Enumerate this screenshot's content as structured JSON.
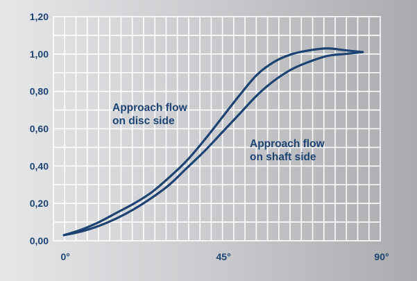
{
  "chart_data": {
    "type": "line",
    "title": "",
    "xlabel": "",
    "ylabel": "",
    "xlim": [
      0,
      90
    ],
    "ylim": [
      0,
      1.2
    ],
    "grid": true,
    "colors": {
      "line": "#1d4373",
      "text": "#1d4373",
      "grid": "#ffffff"
    },
    "yticks": [
      {
        "value": 0.0,
        "label": "0,00"
      },
      {
        "value": 0.2,
        "label": "0,20"
      },
      {
        "value": 0.4,
        "label": "0,40"
      },
      {
        "value": 0.6,
        "label": "0,60"
      },
      {
        "value": 0.8,
        "label": "0,80"
      },
      {
        "value": 1.0,
        "label": "1,00"
      },
      {
        "value": 1.2,
        "label": "1,20"
      }
    ],
    "xticks": [
      {
        "value": 0,
        "label": "0°"
      },
      {
        "value": 45,
        "label": "45°"
      },
      {
        "value": 90,
        "label": "90°"
      }
    ],
    "series": [
      {
        "name": "Approach flow on disc side",
        "x": [
          0,
          5,
          10,
          15,
          20,
          25,
          30,
          35,
          40,
          45,
          50,
          55,
          60,
          65,
          70,
          75,
          80,
          85
        ],
        "y": [
          0.03,
          0.06,
          0.1,
          0.15,
          0.2,
          0.26,
          0.34,
          0.43,
          0.54,
          0.66,
          0.78,
          0.89,
          0.96,
          1.0,
          1.02,
          1.03,
          1.02,
          1.01
        ]
      },
      {
        "name": "Approach flow on shaft side",
        "x": [
          0,
          5,
          10,
          15,
          20,
          25,
          30,
          35,
          40,
          45,
          50,
          55,
          60,
          65,
          70,
          75,
          80,
          85
        ],
        "y": [
          0.03,
          0.05,
          0.08,
          0.12,
          0.17,
          0.23,
          0.3,
          0.39,
          0.48,
          0.58,
          0.68,
          0.78,
          0.86,
          0.92,
          0.96,
          0.99,
          1.0,
          1.01
        ]
      }
    ],
    "annotations": [
      {
        "lines": [
          "Approach flow",
          "on disc side"
        ],
        "series": 0
      },
      {
        "lines": [
          "Approach flow",
          "on shaft side"
        ],
        "series": 1
      }
    ]
  }
}
